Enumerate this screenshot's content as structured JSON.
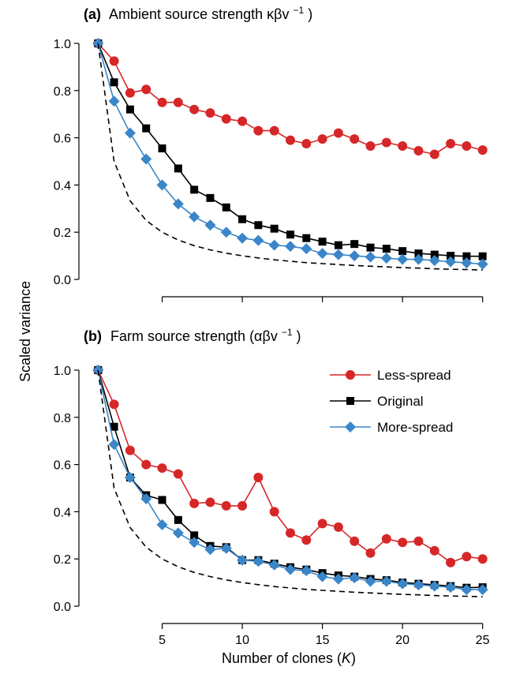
{
  "y_axis_title": "Scaled variance",
  "x_axis_title": {
    "prefix": "Number of clones (",
    "symbol": "K",
    "suffix": ")"
  },
  "colors": {
    "less": "#d62728",
    "original": "#000000",
    "more": "#3a86c8",
    "reference": "#000000"
  },
  "chart_data": [
    {
      "type": "line",
      "panel": "a",
      "title_letter": "(a)",
      "title_text": "Ambient source strength κβv",
      "title_sup": "−1",
      "title_close": ")",
      "x_ticks": [
        5,
        10,
        15,
        20,
        25
      ],
      "y_ticks": [
        "0.0",
        "0.2",
        "0.4",
        "0.6",
        "0.8",
        "1.0"
      ],
      "xlim": [
        0,
        26
      ],
      "ylim": [
        -0.03,
        1.05
      ],
      "x": [
        1,
        2,
        3,
        4,
        5,
        6,
        7,
        8,
        9,
        10,
        11,
        12,
        13,
        14,
        15,
        16,
        17,
        18,
        19,
        20,
        21,
        22,
        23,
        24,
        25
      ],
      "series": [
        {
          "name": "Less-spread",
          "color_key": "less",
          "marker": "circle",
          "values": [
            1.0,
            0.925,
            0.79,
            0.805,
            0.75,
            0.75,
            0.72,
            0.705,
            0.68,
            0.67,
            0.63,
            0.63,
            0.59,
            0.575,
            0.595,
            0.62,
            0.595,
            0.565,
            0.58,
            0.565,
            0.545,
            0.53,
            0.575,
            0.565,
            0.548
          ]
        },
        {
          "name": "Original",
          "color_key": "original",
          "marker": "square",
          "values": [
            1.0,
            0.835,
            0.72,
            0.64,
            0.555,
            0.47,
            0.38,
            0.345,
            0.305,
            0.255,
            0.23,
            0.215,
            0.19,
            0.175,
            0.16,
            0.145,
            0.15,
            0.135,
            0.13,
            0.12,
            0.11,
            0.105,
            0.1,
            0.098,
            0.098
          ]
        },
        {
          "name": "More-spread",
          "color_key": "more",
          "marker": "diamond",
          "values": [
            1.0,
            0.755,
            0.62,
            0.51,
            0.4,
            0.32,
            0.265,
            0.23,
            0.2,
            0.175,
            0.165,
            0.145,
            0.14,
            0.13,
            0.11,
            0.105,
            0.1,
            0.095,
            0.09,
            0.085,
            0.085,
            0.08,
            0.075,
            0.07,
            0.065
          ]
        },
        {
          "name": "",
          "color_key": "reference",
          "dashed": true,
          "formula": "1/K",
          "values": [
            1.0,
            0.5,
            0.333,
            0.25,
            0.2,
            0.167,
            0.143,
            0.125,
            0.111,
            0.1,
            0.091,
            0.083,
            0.077,
            0.071,
            0.067,
            0.063,
            0.059,
            0.056,
            0.053,
            0.05,
            0.048,
            0.045,
            0.043,
            0.042,
            0.04
          ]
        }
      ]
    },
    {
      "type": "line",
      "panel": "b",
      "title_letter": "(b)",
      "title_text": "Farm source strength (αβv",
      "title_sup": "−1",
      "title_close": ")",
      "x_ticks": [
        5,
        10,
        15,
        20,
        25
      ],
      "x_tick_labels": [
        "5",
        "10",
        "15",
        "20",
        "25"
      ],
      "y_ticks": [
        "0.0",
        "0.2",
        "0.4",
        "0.6",
        "0.8",
        "1.0"
      ],
      "xlim": [
        0,
        26
      ],
      "ylim": [
        -0.03,
        1.05
      ],
      "legend": {
        "placement": "top-right",
        "entries": [
          "Less-spread",
          "Original",
          "More-spread"
        ]
      },
      "x": [
        1,
        2,
        3,
        4,
        5,
        6,
        7,
        8,
        9,
        10,
        11,
        12,
        13,
        14,
        15,
        16,
        17,
        18,
        19,
        20,
        21,
        22,
        23,
        24,
        25
      ],
      "series": [
        {
          "name": "Less-spread",
          "color_key": "less",
          "marker": "circle",
          "values": [
            1.0,
            0.855,
            0.66,
            0.6,
            0.585,
            0.56,
            0.435,
            0.44,
            0.425,
            0.425,
            0.545,
            0.4,
            0.31,
            0.28,
            0.35,
            0.335,
            0.275,
            0.225,
            0.285,
            0.27,
            0.275,
            0.235,
            0.185,
            0.21,
            0.2
          ]
        },
        {
          "name": "Original",
          "color_key": "original",
          "marker": "square",
          "values": [
            1.0,
            0.76,
            0.545,
            0.47,
            0.45,
            0.365,
            0.3,
            0.255,
            0.25,
            0.195,
            0.195,
            0.18,
            0.165,
            0.155,
            0.14,
            0.13,
            0.125,
            0.115,
            0.11,
            0.1,
            0.095,
            0.09,
            0.085,
            0.078,
            0.08
          ]
        },
        {
          "name": "More-spread",
          "color_key": "more",
          "marker": "diamond",
          "values": [
            1.0,
            0.685,
            0.545,
            0.455,
            0.345,
            0.31,
            0.27,
            0.24,
            0.245,
            0.195,
            0.19,
            0.175,
            0.155,
            0.15,
            0.125,
            0.115,
            0.12,
            0.105,
            0.105,
            0.095,
            0.09,
            0.085,
            0.08,
            0.07,
            0.07
          ]
        },
        {
          "name": "",
          "color_key": "reference",
          "dashed": true,
          "formula": "1/K",
          "values": [
            1.0,
            0.5,
            0.333,
            0.25,
            0.2,
            0.167,
            0.143,
            0.125,
            0.111,
            0.1,
            0.091,
            0.083,
            0.077,
            0.071,
            0.067,
            0.063,
            0.059,
            0.056,
            0.053,
            0.05,
            0.048,
            0.045,
            0.043,
            0.042,
            0.04
          ]
        }
      ]
    }
  ]
}
